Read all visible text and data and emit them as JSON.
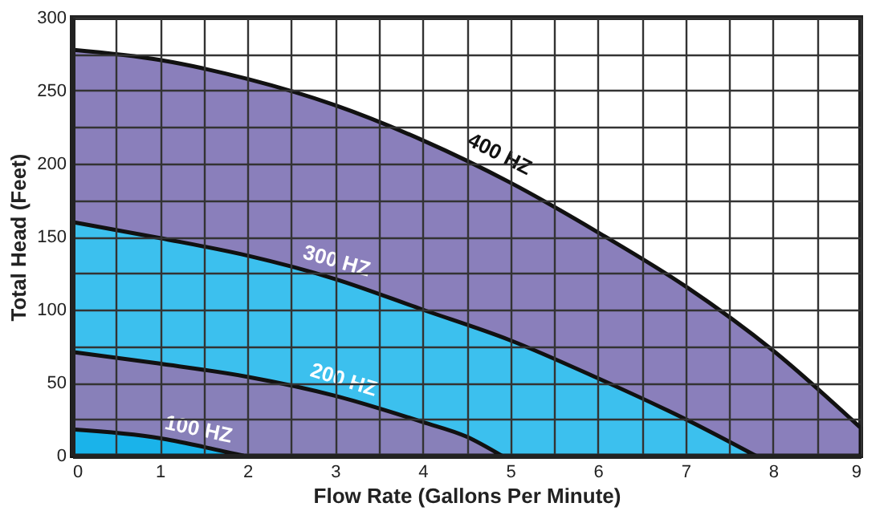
{
  "chart_data": {
    "type": "area",
    "xlabel": "Flow Rate (Gallons Per Minute)",
    "ylabel": "Total Head (Feet)",
    "xlim": [
      0,
      9
    ],
    "ylim": [
      0,
      300
    ],
    "xticks": [
      0,
      {
        "value": 0.5,
        "label": null
      },
      1,
      {
        "value": 1.5,
        "label": null
      },
      2,
      {
        "value": 2.5,
        "label": null
      },
      3,
      {
        "value": 3.5,
        "label": null
      },
      4,
      {
        "value": 4.5,
        "label": null
      },
      5,
      {
        "value": 5.5,
        "label": null
      },
      6,
      {
        "value": 6.5,
        "label": null
      },
      7,
      {
        "value": 7.5,
        "label": null
      },
      8,
      {
        "value": 8.5,
        "label": null
      },
      9
    ],
    "yticks": [
      0,
      {
        "value": 25,
        "label": null
      },
      50,
      {
        "value": 75,
        "label": null
      },
      100,
      {
        "value": 125,
        "label": null
      },
      150,
      {
        "value": 175,
        "label": null
      },
      200,
      {
        "value": 225,
        "label": null
      },
      250,
      {
        "value": 275,
        "label": null
      },
      300
    ],
    "grid": true,
    "series": [
      {
        "name": "400 HZ",
        "color": "#8a7fbb",
        "x": [
          0,
          1,
          2,
          3,
          4,
          5,
          6,
          7,
          8,
          9
        ],
        "values": [
          278,
          271,
          258,
          240,
          216,
          187,
          153,
          116,
          72,
          19
        ]
      },
      {
        "name": "300 HZ",
        "color": "#3cc0ee",
        "x": [
          0,
          1,
          2,
          3,
          4,
          5,
          6,
          7,
          7.8
        ],
        "values": [
          160,
          149,
          137,
          121,
          100,
          79,
          53,
          25,
          0
        ]
      },
      {
        "name": "200 HZ",
        "color": "#8880b9",
        "x": [
          0,
          1,
          2,
          3,
          4,
          4.5,
          4.9
        ],
        "values": [
          71,
          63,
          54,
          41,
          23,
          13,
          0
        ]
      },
      {
        "name": "100 HZ",
        "color": "#1ab3ea",
        "x": [
          0,
          1,
          1.5,
          1.95
        ],
        "values": [
          18,
          12,
          6,
          0
        ]
      }
    ]
  }
}
